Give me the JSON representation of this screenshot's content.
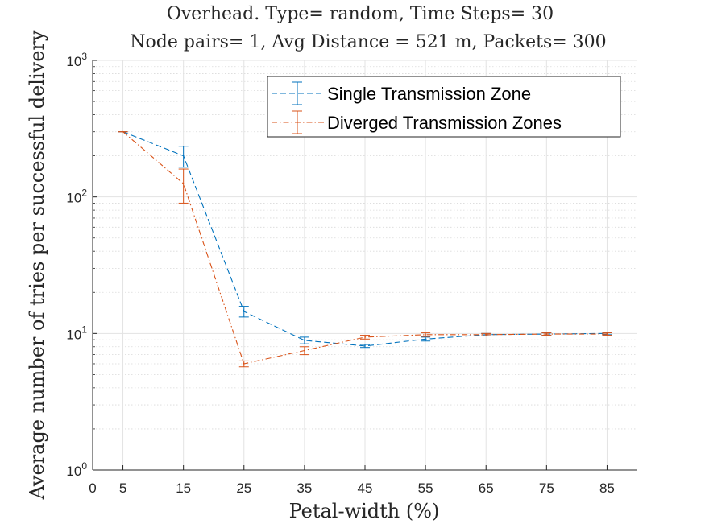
{
  "chart_data": {
    "type": "line",
    "title_lines": [
      "Overhead. Type= random, Time Steps= 30",
      "Node pairs= 1, Avg Distance = 521 m, Packets= 300"
    ],
    "xlabel": "Petal-width (%)",
    "ylabel": "Average number of tries per successful delivery",
    "x_scale": "linear",
    "y_scale": "log",
    "xlim": [
      0,
      90
    ],
    "ylim": [
      1,
      1000
    ],
    "x_ticks": [
      0,
      5,
      15,
      25,
      35,
      45,
      55,
      65,
      75,
      85
    ],
    "y_ticks": [
      {
        "value": 1,
        "base": "10",
        "exp": "0"
      },
      {
        "value": 10,
        "base": "10",
        "exp": "1"
      },
      {
        "value": 100,
        "base": "10",
        "exp": "2"
      },
      {
        "value": 1000,
        "base": "10",
        "exp": "3"
      }
    ],
    "grid": true,
    "minor_grid_y": true,
    "legend_position": "top-right",
    "series": [
      {
        "name": "Single Transmission Zone",
        "color": "#0072BD",
        "line_style": "dashed",
        "x": [
          5,
          15,
          25,
          35,
          45,
          55,
          65,
          75,
          85
        ],
        "y": [
          300,
          200,
          14.5,
          8.9,
          8.1,
          9.1,
          9.8,
          9.9,
          10
        ],
        "err": [
          0,
          35,
          1.3,
          0.5,
          0.2,
          0.3,
          0.2,
          0.2,
          0.2
        ]
      },
      {
        "name": "Diverged Transmission Zones",
        "color": "#D95319",
        "line_style": "dash-dot",
        "x": [
          5,
          15,
          25,
          35,
          45,
          55,
          65,
          75,
          85
        ],
        "y": [
          300,
          125,
          6.0,
          7.5,
          9.4,
          9.8,
          9.8,
          9.9,
          9.9
        ],
        "err": [
          0,
          35,
          0.3,
          0.5,
          0.3,
          0.3,
          0.2,
          0.2,
          0.2
        ]
      }
    ]
  }
}
